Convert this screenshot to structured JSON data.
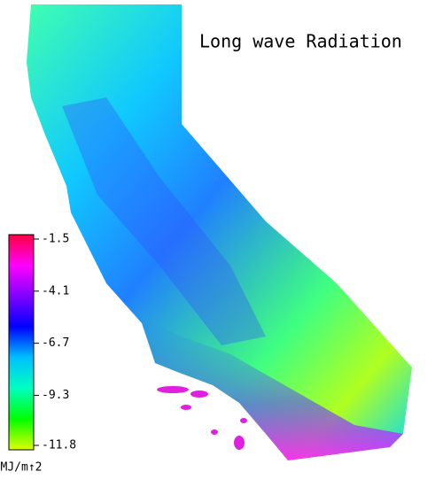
{
  "title": "Long wave Radiation",
  "colorbar": {
    "ticks": [
      -1.5,
      -4.1,
      -6.7,
      -9.3,
      -11.8
    ],
    "range": [
      -1.5,
      -11.8
    ],
    "label": "MJ/m↑2",
    "colors": [
      "#ff0040",
      "#ff00ff",
      "#8000ff",
      "#0000ff",
      "#00c0ff",
      "#00ffc0",
      "#00ff00",
      "#e0ff00"
    ]
  }
}
